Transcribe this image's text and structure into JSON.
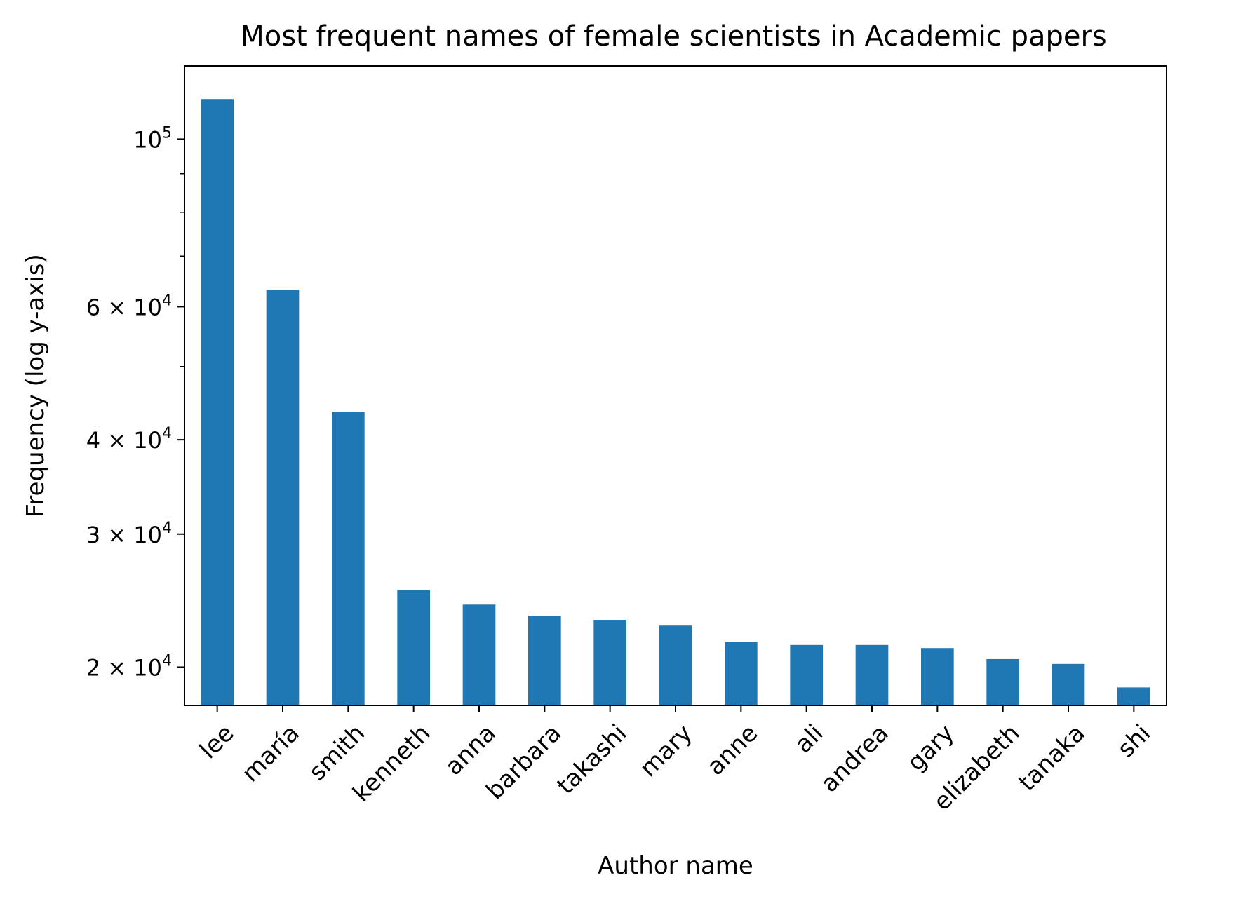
{
  "chart_data": {
    "type": "bar",
    "title": "Most frequent names of female scientists in Academic papers",
    "xlabel": "Author name",
    "ylabel": "Frequency (log y-axis)",
    "yscale": "log",
    "ylim": [
      17800,
      125000
    ],
    "grid": false,
    "legend": "none",
    "bar_color": "#1f77b4",
    "categories": [
      "lee",
      "maría",
      "smith",
      "kenneth",
      "anna",
      "barbara",
      "takashi",
      "mary",
      "anne",
      "ali",
      "andrea",
      "gary",
      "elizabeth",
      "tanaka",
      "shi"
    ],
    "values": [
      113000,
      63200,
      43500,
      25300,
      24200,
      23400,
      23100,
      22700,
      21600,
      21400,
      21400,
      21200,
      20500,
      20200,
      18800
    ],
    "y_major_ticks": [
      {
        "value": 20000,
        "mantissa": "2",
        "base": "10",
        "exp": "4"
      },
      {
        "value": 30000,
        "mantissa": "3",
        "base": "10",
        "exp": "4"
      },
      {
        "value": 40000,
        "mantissa": "4",
        "base": "10",
        "exp": "4"
      },
      {
        "value": 60000,
        "mantissa": "6",
        "base": "10",
        "exp": "4"
      },
      {
        "value": 100000,
        "mantissa": "",
        "base": "10",
        "exp": "5"
      }
    ],
    "y_minor_ticks": [
      50000,
      70000,
      80000,
      90000
    ]
  }
}
